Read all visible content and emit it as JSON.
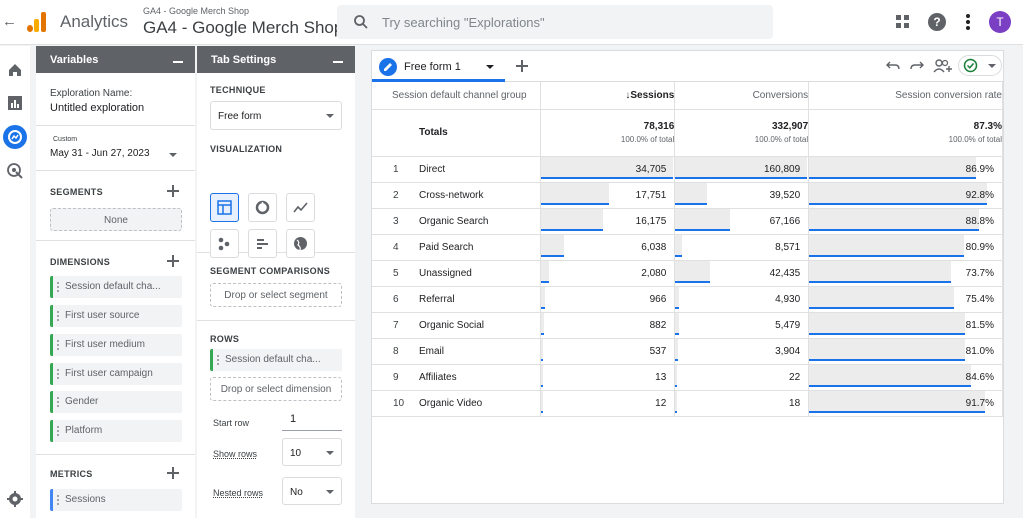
{
  "topbar": {
    "app_name": "Analytics",
    "account_small": "GA4 - Google Merch Shop",
    "account_big": "GA4 - Google Merch Shop",
    "search_placeholder": "Try searching \"Explorations\"",
    "avatar_initial": "T",
    "avatar_color": "#7b3fc4"
  },
  "variables": {
    "header": "Variables",
    "exploration_name_label": "Exploration Name:",
    "exploration_name": "Untitled exploration",
    "date_range_label": "Custom",
    "date_range": "May 31 - Jun 27, 2023",
    "segments_title": "SEGMENTS",
    "segments_none": "None",
    "dimensions_title": "DIMENSIONS",
    "dimensions": [
      "Session default cha...",
      "First user source",
      "First user medium",
      "First user campaign",
      "Gender",
      "Platform"
    ],
    "metrics_title": "METRICS",
    "metrics": [
      "Sessions"
    ]
  },
  "tab_settings": {
    "header": "Tab Settings",
    "technique_title": "TECHNIQUE",
    "technique_value": "Free form",
    "visualization_title": "VISUALIZATION",
    "segment_comparisons_title": "SEGMENT COMPARISONS",
    "segment_drop": "Drop or select segment",
    "rows_title": "ROWS",
    "rows_chip": "Session default cha...",
    "rows_drop": "Drop or select dimension",
    "start_row_label": "Start row",
    "start_row_value": "1",
    "show_rows_label": "Show rows",
    "show_rows_value": "10",
    "nested_rows_label": "Nested rows",
    "nested_rows_value": "No"
  },
  "report": {
    "tab_name": "Free form 1",
    "headers": [
      "Session default channel group",
      "↓Sessions",
      "Conversions",
      "Session conversion rate"
    ],
    "totals_label": "Totals",
    "totals": [
      {
        "value": "78,316",
        "sub": "100.0% of total"
      },
      {
        "value": "332,907",
        "sub": "100.0% of total"
      },
      {
        "value": "87.3%",
        "sub": "100.0% of total"
      }
    ],
    "rows": [
      {
        "idx": "1",
        "name": "Direct",
        "sessions": "34,705",
        "conversions": "160,809",
        "rate": "86.9%"
      },
      {
        "idx": "2",
        "name": "Cross-network",
        "sessions": "17,751",
        "conversions": "39,520",
        "rate": "92.8%"
      },
      {
        "idx": "3",
        "name": "Organic Search",
        "sessions": "16,175",
        "conversions": "67,166",
        "rate": "88.8%"
      },
      {
        "idx": "4",
        "name": "Paid Search",
        "sessions": "6,038",
        "conversions": "8,571",
        "rate": "80.9%"
      },
      {
        "idx": "5",
        "name": "Unassigned",
        "sessions": "2,080",
        "conversions": "42,435",
        "rate": "73.7%"
      },
      {
        "idx": "6",
        "name": "Referral",
        "sessions": "966",
        "conversions": "4,930",
        "rate": "75.4%"
      },
      {
        "idx": "7",
        "name": "Organic Social",
        "sessions": "882",
        "conversions": "5,479",
        "rate": "81.5%"
      },
      {
        "idx": "8",
        "name": "Email",
        "sessions": "537",
        "conversions": "3,904",
        "rate": "81.0%"
      },
      {
        "idx": "9",
        "name": "Affiliates",
        "sessions": "13",
        "conversions": "22",
        "rate": "84.6%"
      },
      {
        "idx": "10",
        "name": "Organic Video",
        "sessions": "12",
        "conversions": "18",
        "rate": "91.7%"
      }
    ],
    "bar_fractions": [
      {
        "sessions": 1.0,
        "conversions": 1.0,
        "rate": 0.869
      },
      {
        "sessions": 0.512,
        "conversions": 0.246,
        "rate": 0.928
      },
      {
        "sessions": 0.466,
        "conversions": 0.418,
        "rate": 0.888
      },
      {
        "sessions": 0.174,
        "conversions": 0.053,
        "rate": 0.809
      },
      {
        "sessions": 0.06,
        "conversions": 0.264,
        "rate": 0.737
      },
      {
        "sessions": 0.028,
        "conversions": 0.031,
        "rate": 0.754
      },
      {
        "sessions": 0.025,
        "conversions": 0.034,
        "rate": 0.815
      },
      {
        "sessions": 0.015,
        "conversions": 0.024,
        "rate": 0.81
      },
      {
        "sessions": 0.0,
        "conversions": 0.0,
        "rate": 0.846
      },
      {
        "sessions": 0.0,
        "conversions": 0.0,
        "rate": 0.917
      }
    ]
  }
}
